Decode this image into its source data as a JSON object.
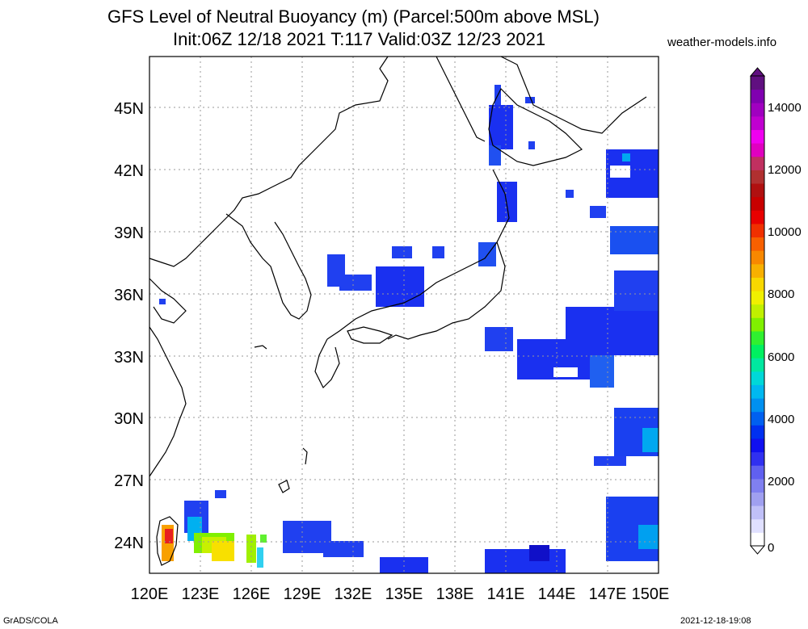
{
  "title_line1": "GFS Level of Neutral Buoyancy (m) (Parcel:500m above MSL)",
  "title_line2": "Init:06Z 12/18 2021 T:117 Valid:03Z 12/23 2021",
  "credit": "weather-models.info",
  "footer_left": "GrADS/COLA",
  "footer_right": "2021-12-18-19:08",
  "lat_labels": [
    "45N",
    "42N",
    "39N",
    "36N",
    "33N",
    "30N",
    "27N",
    "24N"
  ],
  "lon_labels": [
    "120E",
    "123E",
    "126E",
    "129E",
    "132E",
    "135E",
    "138E",
    "141E",
    "144E",
    "147E",
    "150E"
  ],
  "colorbar": {
    "labels": [
      "14000",
      "12000",
      "10000",
      "8000",
      "6000",
      "4000",
      "2000",
      "0"
    ],
    "colors": [
      "#ffffff",
      "#e0e0ff",
      "#c0c0f8",
      "#a0a0f0",
      "#8080f0",
      "#6060f0",
      "#3030f0",
      "#1010f0",
      "#0030f0",
      "#0060f0",
      "#0090f0",
      "#00b8f0",
      "#00d8d8",
      "#00e8a0",
      "#00f060",
      "#30f030",
      "#80f000",
      "#c0f000",
      "#f0f000",
      "#f8d800",
      "#f8b000",
      "#f88800",
      "#f86000",
      "#f03000",
      "#e80000",
      "#c80000",
      "#b01010",
      "#b03030",
      "#c03060",
      "#e000c0",
      "#f000f0",
      "#c000d0",
      "#a000c0",
      "#8000b0",
      "#601080"
    ]
  }
}
